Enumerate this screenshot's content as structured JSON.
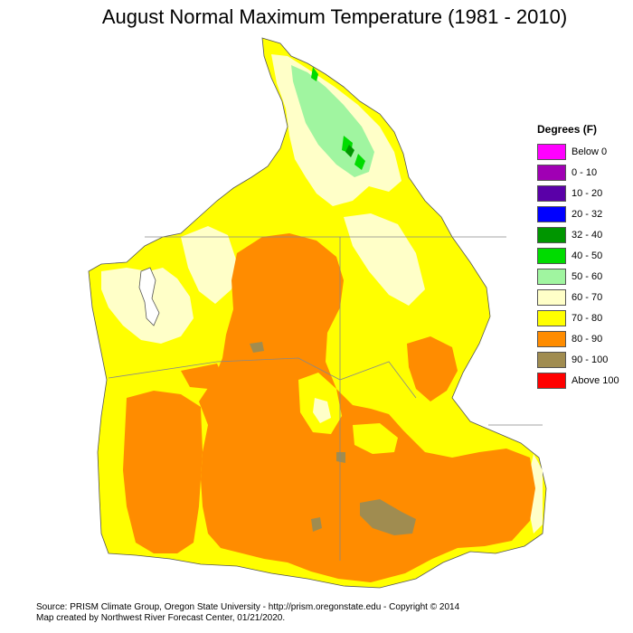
{
  "title": "August Normal Maximum Temperature (1981 - 2010)",
  "legend": {
    "title": "Degrees (F)",
    "items": [
      {
        "label": "Below 0",
        "color": "#ff00ff"
      },
      {
        "label": "0 - 10",
        "color": "#a000b4"
      },
      {
        "label": "10 - 20",
        "color": "#5a00a8"
      },
      {
        "label": "20 - 32",
        "color": "#0000ff"
      },
      {
        "label": "32 - 40",
        "color": "#009600"
      },
      {
        "label": "40 - 50",
        "color": "#00dc00"
      },
      {
        "label": "50 - 60",
        "color": "#a0f5a0"
      },
      {
        "label": "60 - 70",
        "color": "#ffffc8"
      },
      {
        "label": "70 - 80",
        "color": "#ffff00"
      },
      {
        "label": "80 - 90",
        "color": "#ff8c00"
      },
      {
        "label": "90 - 100",
        "color": "#a08c50"
      },
      {
        "label": "Above 100",
        "color": "#ff0000"
      }
    ]
  },
  "footer": {
    "line1": "Source: PRISM Climate Group, Oregon State University - http://prism.oregonstate.edu - Copyright © 2014",
    "line2": "Map created by Northwest River Forecast Center, 01/21/2020."
  }
}
